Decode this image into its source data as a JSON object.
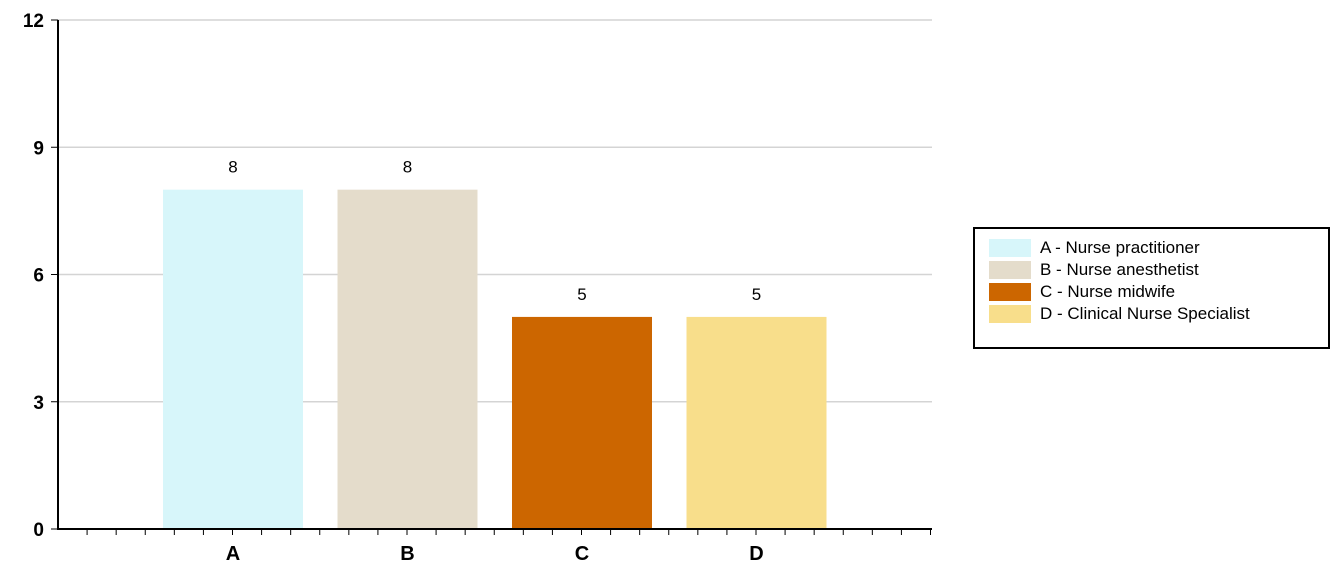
{
  "chart_data": {
    "type": "bar",
    "categories": [
      "A",
      "B",
      "C",
      "D"
    ],
    "values": [
      8,
      8,
      5,
      5
    ],
    "colors": [
      "#d7f6fa",
      "#e4dccb",
      "#cc6600",
      "#f8de8b"
    ],
    "data_labels": [
      "8",
      "8",
      "5",
      "5"
    ],
    "ylim": [
      0,
      12
    ],
    "yticks": [
      0,
      3,
      6,
      9,
      12
    ],
    "ytick_labels": [
      "0",
      "3",
      "6",
      "9",
      "12"
    ],
    "grid": true,
    "title": "",
    "xlabel": "",
    "ylabel": "",
    "legend_position": "right",
    "legend": [
      {
        "label": "A - Nurse practitioner",
        "color": "#d7f6fa"
      },
      {
        "label": "B - Nurse anesthetist",
        "color": "#e4dccb"
      },
      {
        "label": "C - Nurse midwife",
        "color": "#cc6600"
      },
      {
        "label": "D - Clinical Nurse Specialist",
        "color": "#f8de8b"
      }
    ]
  }
}
